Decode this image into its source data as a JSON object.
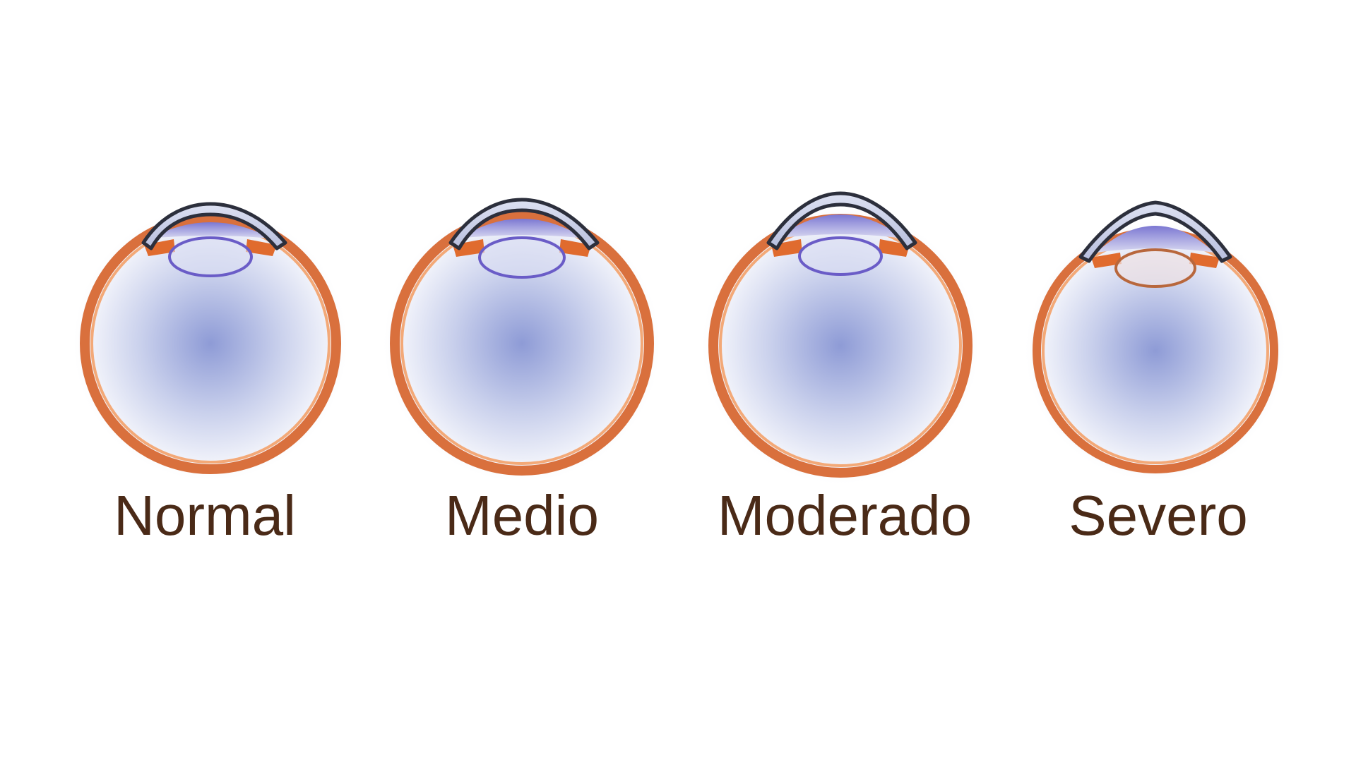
{
  "figure": {
    "stages": [
      {
        "id": "normal",
        "label": "Normal"
      },
      {
        "id": "medio",
        "label": "Medio"
      },
      {
        "id": "moderado",
        "label": "Moderado"
      },
      {
        "id": "severo",
        "label": "Severo"
      }
    ]
  },
  "colors": {
    "background": "#ffffff",
    "label_text": "#4a2a17",
    "sclera_outer": "#d9703d",
    "sclera_inner": "#f09a68",
    "cornea_fill": "#c4cbe6",
    "cornea_outline": "#2c2f3c",
    "iris": "#e06b2e",
    "anterior_chamber": "#8a86d6",
    "lens_outline_blue": "#6a5cc7",
    "lens_outline_brown": "#b8673c",
    "vitreous_center": "#8e9bd6",
    "vitreous_edge": "#f6f7fc"
  }
}
